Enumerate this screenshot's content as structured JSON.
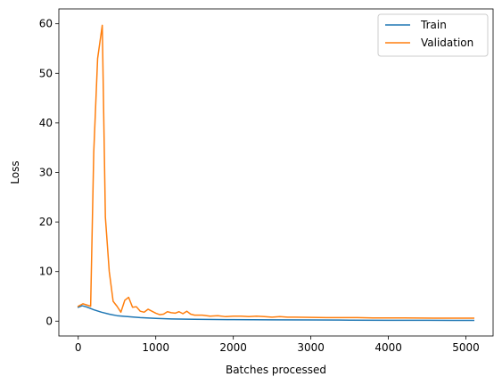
{
  "chart_data": {
    "type": "line",
    "title": "",
    "xlabel": "Batches processed",
    "ylabel": "Loss",
    "xlim": [
      -250,
      5350
    ],
    "ylim": [
      -3.0,
      63.0
    ],
    "xticks": [
      0,
      1000,
      2000,
      3000,
      4000,
      5000
    ],
    "yticks": [
      0,
      10,
      20,
      30,
      40,
      50,
      60
    ],
    "grid": false,
    "legend_position": "top-right",
    "series": [
      {
        "name": "Train",
        "color": "#1f77b4",
        "points": [
          [
            0,
            2.8
          ],
          [
            50,
            3.1
          ],
          [
            100,
            2.9
          ],
          [
            150,
            2.6
          ],
          [
            200,
            2.3
          ],
          [
            300,
            1.8
          ],
          [
            400,
            1.4
          ],
          [
            500,
            1.1
          ],
          [
            600,
            0.95
          ],
          [
            800,
            0.7
          ],
          [
            1000,
            0.55
          ],
          [
            1200,
            0.45
          ],
          [
            1500,
            0.38
          ],
          [
            2000,
            0.3
          ],
          [
            2500,
            0.26
          ],
          [
            3000,
            0.23
          ],
          [
            3500,
            0.2
          ],
          [
            4000,
            0.18
          ],
          [
            4500,
            0.16
          ],
          [
            5100,
            0.15
          ]
        ]
      },
      {
        "name": "Validation",
        "color": "#ff7f0e",
        "points": [
          [
            0,
            3.0
          ],
          [
            60,
            3.5
          ],
          [
            120,
            3.2
          ],
          [
            160,
            3.0
          ],
          [
            200,
            34.0
          ],
          [
            250,
            53.0
          ],
          [
            310,
            59.7
          ],
          [
            350,
            21.0
          ],
          [
            400,
            10.0
          ],
          [
            450,
            4.0
          ],
          [
            500,
            3.0
          ],
          [
            550,
            1.8
          ],
          [
            600,
            4.2
          ],
          [
            650,
            4.8
          ],
          [
            700,
            2.8
          ],
          [
            750,
            2.9
          ],
          [
            800,
            2.0
          ],
          [
            850,
            1.8
          ],
          [
            900,
            2.4
          ],
          [
            950,
            2.0
          ],
          [
            1000,
            1.6
          ],
          [
            1050,
            1.3
          ],
          [
            1100,
            1.4
          ],
          [
            1150,
            1.9
          ],
          [
            1200,
            1.7
          ],
          [
            1250,
            1.6
          ],
          [
            1300,
            1.9
          ],
          [
            1350,
            1.5
          ],
          [
            1400,
            2.0
          ],
          [
            1450,
            1.4
          ],
          [
            1500,
            1.2
          ],
          [
            1600,
            1.2
          ],
          [
            1700,
            1.0
          ],
          [
            1800,
            1.1
          ],
          [
            1900,
            0.9
          ],
          [
            2000,
            1.0
          ],
          [
            2100,
            1.0
          ],
          [
            2200,
            0.9
          ],
          [
            2300,
            1.0
          ],
          [
            2400,
            0.9
          ],
          [
            2500,
            0.8
          ],
          [
            2600,
            0.9
          ],
          [
            2700,
            0.8
          ],
          [
            2800,
            0.8
          ],
          [
            3000,
            0.75
          ],
          [
            3200,
            0.7
          ],
          [
            3400,
            0.7
          ],
          [
            3600,
            0.7
          ],
          [
            3800,
            0.65
          ],
          [
            4000,
            0.65
          ],
          [
            4200,
            0.65
          ],
          [
            4400,
            0.62
          ],
          [
            4600,
            0.6
          ],
          [
            4800,
            0.6
          ],
          [
            5100,
            0.6
          ]
        ]
      }
    ]
  }
}
